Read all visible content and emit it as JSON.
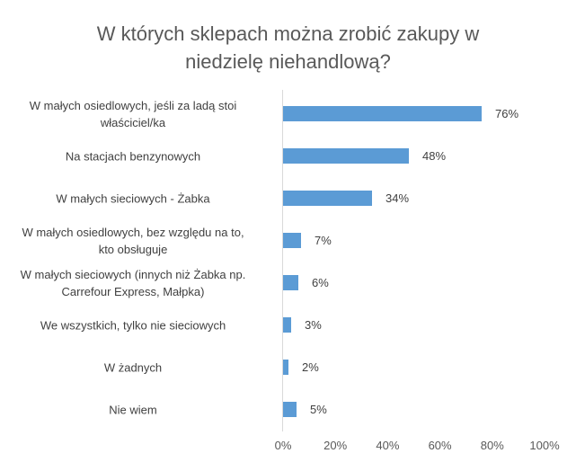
{
  "title": {
    "line1": "W których sklepach można zrobić zakupy w",
    "line2": "niedzielę niehandlową?"
  },
  "colors": {
    "bar": "#5b9bd5",
    "axis": "#d9d9d9",
    "text": "#404040"
  },
  "rows": [
    {
      "label_lines": [
        "W małych osiedlowych, jeśli za ladą stoi",
        "właściciel/ka"
      ],
      "value": 76,
      "value_label": "76%"
    },
    {
      "label_lines": [
        "Na stacjach benzynowych"
      ],
      "value": 48,
      "value_label": "48%"
    },
    {
      "label_lines": [
        "W małych sieciowych - Żabka"
      ],
      "value": 34,
      "value_label": "34%"
    },
    {
      "label_lines": [
        "W małych osiedlowych, bez względu na to,",
        "kto obsługuje"
      ],
      "value": 7,
      "value_label": "7%"
    },
    {
      "label_lines": [
        "W małych sieciowych (innych niż Żabka np.",
        "Carrefour Express, Małpka)"
      ],
      "value": 6,
      "value_label": "6%"
    },
    {
      "label_lines": [
        "We wszystkich, tylko nie sieciowych"
      ],
      "value": 3,
      "value_label": "3%"
    },
    {
      "label_lines": [
        "W żadnych"
      ],
      "value": 2,
      "value_label": "2%"
    },
    {
      "label_lines": [
        "Nie wiem"
      ],
      "value": 5,
      "value_label": "5%"
    }
  ],
  "x_ticks": [
    "0%",
    "20%",
    "40%",
    "60%",
    "80%",
    "100%"
  ],
  "chart_data": {
    "type": "bar",
    "orientation": "horizontal",
    "title": "W których sklepach można zrobić zakupy w niedzielę niehandlową?",
    "categories": [
      "W małych osiedlowych, jeśli za ladą stoi właściciel/ka",
      "Na stacjach benzynowych",
      "W małych sieciowych - Żabka",
      "W małych osiedlowych, bez względu na to, kto obsługuje",
      "W małych sieciowych (innych niż Żabka np. Carrefour Express, Małpka)",
      "We wszystkich, tylko nie sieciowych",
      "W żadnych",
      "Nie wiem"
    ],
    "values": [
      76,
      48,
      34,
      7,
      6,
      3,
      2,
      5
    ],
    "unit": "%",
    "xlabel": "",
    "ylabel": "",
    "xlim": [
      0,
      100
    ],
    "x_ticks": [
      "0%",
      "20%",
      "40%",
      "60%",
      "80%",
      "100%"
    ],
    "data_labels": true,
    "grid": false,
    "legend": null,
    "bar_color": "#5b9bd5"
  }
}
